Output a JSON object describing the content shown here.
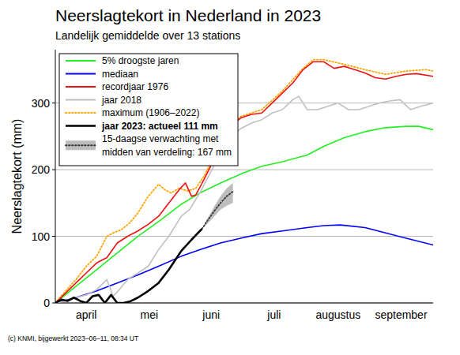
{
  "chart_data": {
    "type": "line",
    "title": "Neerslagtekort in Nederland in 2023",
    "subtitle": "Landelijk gemiddelde over 13 stations",
    "y_label": "Neerslagtekort (mm)",
    "footer": "(c) KNMI, bijgewerkt 2023–06–11, 08:34 UT",
    "xlim": [
      0,
      183
    ],
    "xticks": [
      {
        "value": 15,
        "label": "april"
      },
      {
        "value": 45.5,
        "label": "mei"
      },
      {
        "value": 75.5,
        "label": "juni"
      },
      {
        "value": 106,
        "label": "juli"
      },
      {
        "value": 137,
        "label": "augustus"
      },
      {
        "value": 167.5,
        "label": "september"
      }
    ],
    "ylim": [
      0,
      380
    ],
    "yticks": [
      0,
      100,
      200,
      300
    ],
    "grid": true,
    "legend": "top-left",
    "series": [
      {
        "name": "5% droogste jaren",
        "color": "#22ee22",
        "line_style": "solid",
        "x": [
          0,
          10,
          20,
          30,
          40,
          50,
          61,
          70,
          80,
          91,
          100,
          110,
          122,
          130,
          140,
          150,
          160,
          170,
          176,
          183
        ],
        "values": [
          0,
          25,
          50,
          75,
          100,
          122,
          148,
          165,
          180,
          195,
          205,
          212,
          222,
          235,
          248,
          257,
          263,
          265,
          265,
          260
        ]
      },
      {
        "name": "mediaan",
        "color": "#0000ff",
        "line_style": "solid",
        "x": [
          0,
          10,
          20,
          30,
          40,
          50,
          61,
          70,
          80,
          91,
          100,
          110,
          122,
          130,
          138,
          150,
          160,
          170,
          183
        ],
        "values": [
          0,
          8,
          18,
          30,
          42,
          55,
          70,
          80,
          90,
          98,
          104,
          108,
          113,
          116,
          117,
          113,
          105,
          97,
          87
        ]
      },
      {
        "name": "recordjaar 1976",
        "color": "#ee1111",
        "line_style": "solid",
        "x": [
          0,
          5,
          10,
          15,
          20,
          25,
          30,
          35,
          40,
          45,
          50,
          55,
          60,
          63,
          66,
          68,
          72,
          76,
          80,
          85,
          90,
          95,
          100,
          105,
          110,
          115,
          120,
          125,
          130,
          135,
          140,
          145,
          150,
          155,
          160,
          165,
          170,
          175,
          183
        ],
        "values": [
          0,
          15,
          30,
          45,
          60,
          68,
          90,
          100,
          108,
          118,
          130,
          150,
          170,
          180,
          160,
          162,
          185,
          210,
          235,
          265,
          278,
          283,
          285,
          300,
          315,
          330,
          350,
          362,
          362,
          352,
          355,
          350,
          345,
          338,
          336,
          340,
          343,
          344,
          340
        ]
      },
      {
        "name": "jaar 2018",
        "color": "#c0c0c0",
        "line_style": "solid",
        "x": [
          0,
          5,
          10,
          15,
          20,
          25,
          28,
          31,
          35,
          40,
          45,
          50,
          55,
          61,
          65,
          70,
          75,
          80,
          85,
          90,
          95,
          100,
          105,
          110,
          115,
          118,
          122,
          127,
          132,
          137,
          142,
          147,
          152,
          157,
          162,
          167,
          172,
          177,
          183
        ],
        "values": [
          0,
          3,
          8,
          12,
          20,
          35,
          10,
          20,
          35,
          45,
          55,
          80,
          100,
          130,
          140,
          165,
          195,
          225,
          250,
          262,
          270,
          275,
          285,
          290,
          305,
          310,
          290,
          290,
          295,
          300,
          290,
          290,
          295,
          300,
          303,
          305,
          290,
          295,
          300
        ]
      },
      {
        "name": "maximum (1906–2022)",
        "color": "#ffa500",
        "line_style": "dotted",
        "x": [
          0,
          5,
          10,
          15,
          20,
          25,
          28,
          32,
          36,
          40,
          45,
          50,
          53,
          56,
          60,
          64,
          68,
          72,
          76,
          80,
          85,
          90,
          100,
          110,
          120,
          125,
          130,
          140,
          150,
          160,
          170,
          180,
          183
        ],
        "values": [
          0,
          18,
          35,
          55,
          70,
          100,
          105,
          110,
          120,
          135,
          160,
          178,
          170,
          165,
          172,
          168,
          172,
          190,
          215,
          245,
          268,
          280,
          290,
          318,
          352,
          365,
          365,
          358,
          350,
          343,
          348,
          350,
          348
        ]
      },
      {
        "name": "jaar 2023: actueel 111 mm",
        "color": "#000000",
        "line_style": "solid",
        "x": [
          0,
          3,
          6,
          9,
          12,
          15,
          18,
          21,
          24,
          27,
          30,
          33,
          36,
          40,
          45,
          50,
          55,
          61,
          66,
          71
        ],
        "values": [
          0,
          5,
          3,
          8,
          3,
          0,
          10,
          12,
          0,
          12,
          0,
          0,
          2,
          8,
          18,
          30,
          50,
          78,
          95,
          111
        ]
      },
      {
        "name": "15-daagse verwachting met\nmidden van verdeling: 167 mm",
        "color": "#333333",
        "line_style": "dotted",
        "x": [
          71,
          74,
          77,
          80,
          83,
          86
        ],
        "values": [
          111,
          125,
          138,
          150,
          160,
          167
        ],
        "low": [
          111,
          120,
          130,
          140,
          146,
          150
        ],
        "high": [
          111,
          128,
          145,
          160,
          172,
          180
        ]
      }
    ]
  }
}
